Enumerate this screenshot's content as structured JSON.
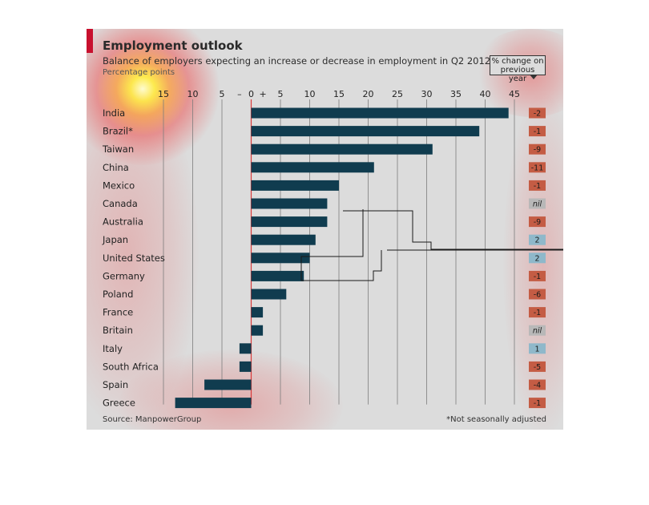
{
  "title": "Employment outlook",
  "subtitle": "Balance of employers expecting an increase or decrease in employment in Q2 2012",
  "units": "Percentage points",
  "change_header": "% change on previous year",
  "source": "Source: ManpowerGroup",
  "footnote": "*Not seasonally adjusted",
  "colors": {
    "bar": "#103c4f",
    "badge_negative": "#c45c44",
    "badge_positive": "#8fb8ca",
    "badge_nil": "#b8b8b8",
    "zero_line": "#d93b3b",
    "grid": "#7d7d7d"
  },
  "chart_data": {
    "type": "bar",
    "orientation": "horizontal",
    "title": "Employment outlook",
    "subtitle": "Balance of employers expecting an increase or decrease in employment in Q2 2012",
    "xlabel": "Percentage points",
    "xlim": [
      -17,
      45
    ],
    "ticks": [
      {
        "value": -15,
        "label": "15"
      },
      {
        "value": -10,
        "label": "10"
      },
      {
        "value": -5,
        "label": "5"
      },
      {
        "value": -2,
        "label": "–"
      },
      {
        "value": 0,
        "label": "0"
      },
      {
        "value": 2,
        "label": "+"
      },
      {
        "value": 5,
        "label": "5"
      },
      {
        "value": 10,
        "label": "10"
      },
      {
        "value": 15,
        "label": "15"
      },
      {
        "value": 20,
        "label": "20"
      },
      {
        "value": 25,
        "label": "25"
      },
      {
        "value": 30,
        "label": "30"
      },
      {
        "value": 35,
        "label": "35"
      },
      {
        "value": 40,
        "label": "40"
      },
      {
        "value": 45,
        "label": "45"
      }
    ],
    "gridlines": [
      -15,
      -10,
      -5,
      0,
      5,
      10,
      15,
      20,
      25,
      30,
      35,
      40,
      45
    ],
    "categories": [
      "India",
      "Brazil*",
      "Taiwan",
      "China",
      "Mexico",
      "Canada",
      "Australia",
      "Japan",
      "United States",
      "Germany",
      "Poland",
      "France",
      "Britain",
      "Italy",
      "South Africa",
      "Spain",
      "Greece"
    ],
    "values": [
      44,
      39,
      31,
      21,
      15,
      13,
      13,
      11,
      10,
      9,
      6,
      2,
      2,
      -2,
      -2,
      -8,
      -13
    ],
    "change_on_previous_year": [
      "-2",
      "-1",
      "-9",
      "-11",
      "-1",
      "nil",
      "-9",
      "2",
      "2",
      "-1",
      "-6",
      "-1",
      "nil",
      "1",
      "-5",
      "-4",
      "-1"
    ]
  }
}
